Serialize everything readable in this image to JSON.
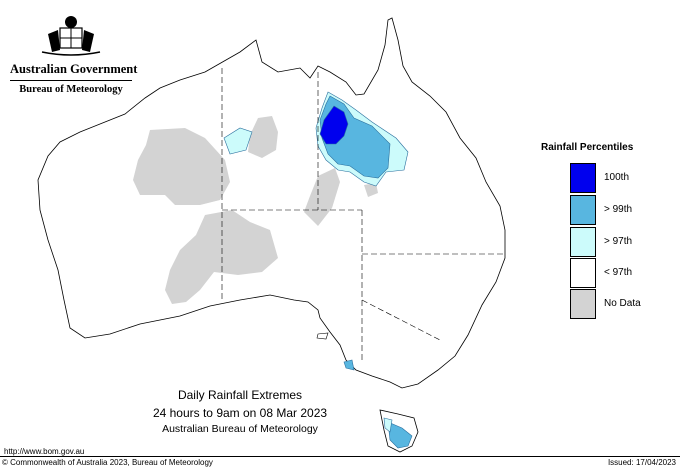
{
  "header": {
    "gov_label": "Australian Government",
    "agency_label": "Bureau of Meteorology"
  },
  "caption": {
    "line1": "Daily Rainfall Extremes",
    "line2": "24 hours to 9am on 08 Mar 2023",
    "line3": "Australian Bureau of Meteorology"
  },
  "legend": {
    "title": "Rainfall Percentiles",
    "items": [
      {
        "label": "100th",
        "color": "#0000ee"
      },
      {
        "label": "> 99th",
        "color": "#58b6e0"
      },
      {
        "label": "> 97th",
        "color": "#ccfbfb"
      },
      {
        "label": "< 97th",
        "color": "#ffffff"
      },
      {
        "label": "No Data",
        "color": "#d3d3d3"
      }
    ]
  },
  "footer": {
    "url": "http://www.bom.gov.au",
    "copyright": "© Commonwealth of Australia 2023, Bureau of Meteorology",
    "issued": "Issued: 17/04/2023"
  },
  "colors": {
    "coast": "#000000",
    "no_data": "#d3d3d3",
    "p97": "#ccfbfb",
    "p99": "#58b6e0",
    "p100": "#0000ee"
  }
}
